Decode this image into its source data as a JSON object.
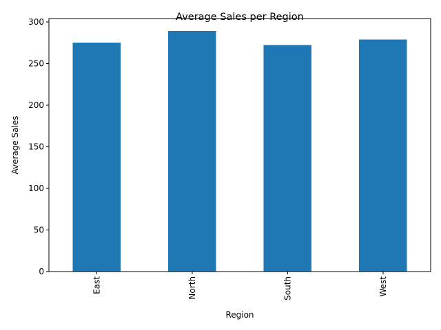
{
  "chart_data": {
    "type": "bar",
    "title": "Average Sales per Region",
    "xlabel": "Region",
    "ylabel": "Average Sales",
    "categories": [
      "East",
      "North",
      "South",
      "West"
    ],
    "values": [
      275,
      289,
      272,
      279
    ],
    "ylim": [
      0,
      304
    ],
    "yticks": [
      0,
      50,
      100,
      150,
      200,
      250,
      300
    ],
    "ytick_labels": [
      "0",
      "50",
      "100",
      "150",
      "200",
      "250",
      "300"
    ],
    "bar_color": "#1f77b4",
    "grid": false,
    "legend": "none",
    "x_tick_rotation": "vertical"
  }
}
